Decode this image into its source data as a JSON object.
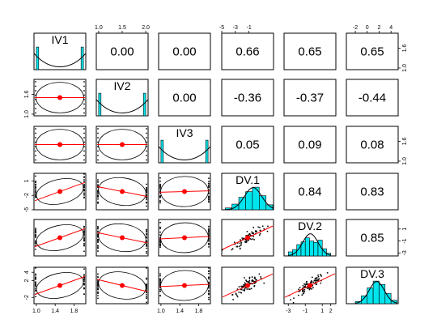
{
  "chart_data": {
    "type": "scatter-matrix",
    "variables": [
      "IV1",
      "IV2",
      "IV3",
      "DV.1",
      "DV.2",
      "DV.3"
    ],
    "colors": {
      "hist": "#00e5ee",
      "fit": "#ff0000",
      "point": "#000000",
      "mean": "#ff0000",
      "ellipse": "#000000"
    },
    "correlations": [
      {
        "row": 0,
        "col": 1,
        "label": "0.00"
      },
      {
        "row": 0,
        "col": 2,
        "label": "0.00"
      },
      {
        "row": 0,
        "col": 3,
        "label": "0.66"
      },
      {
        "row": 0,
        "col": 4,
        "label": "0.65"
      },
      {
        "row": 0,
        "col": 5,
        "label": "0.65"
      },
      {
        "row": 1,
        "col": 2,
        "label": "0.00"
      },
      {
        "row": 1,
        "col": 3,
        "label": "-0.36"
      },
      {
        "row": 1,
        "col": 4,
        "label": "-0.37"
      },
      {
        "row": 1,
        "col": 5,
        "label": "-0.44"
      },
      {
        "row": 2,
        "col": 3,
        "label": "0.05"
      },
      {
        "row": 2,
        "col": 4,
        "label": "0.09"
      },
      {
        "row": 2,
        "col": 5,
        "label": "0.08"
      },
      {
        "row": 3,
        "col": 4,
        "label": "0.84"
      },
      {
        "row": 3,
        "col": 5,
        "label": "0.83"
      },
      {
        "row": 4,
        "col": 5,
        "label": "0.85"
      }
    ],
    "ranges": [
      [
        0.95,
        2.05
      ],
      [
        0.95,
        2.05
      ],
      [
        0.95,
        2.05
      ],
      [
        -5,
        2.6
      ],
      [
        -3.5,
        2.6
      ],
      [
        -3.5,
        5.2
      ]
    ],
    "ticks": {
      "top": [
        {
          "col": 1,
          "values": [
            1.0,
            1.5,
            2.0
          ],
          "labels": [
            "1.0",
            "1.5",
            "2.0"
          ]
        },
        {
          "col": 3,
          "values": [
            -5,
            -3,
            -1
          ],
          "labels": [
            "-5",
            "-3",
            "-1"
          ]
        },
        {
          "col": 5,
          "values": [
            -2,
            0,
            2,
            4
          ],
          "labels": [
            "-2",
            "0",
            "2",
            "4"
          ]
        }
      ],
      "bottom": [
        {
          "col": 0,
          "values": [
            1.0,
            1.4,
            1.8
          ],
          "labels": [
            "1.0",
            "1.4",
            "1.8"
          ]
        },
        {
          "col": 2,
          "values": [
            1.0,
            1.4,
            1.8
          ],
          "labels": [
            "1.0",
            "1.4",
            "1.8"
          ]
        },
        {
          "col": 4,
          "values": [
            -3,
            -1,
            1,
            2
          ],
          "labels": [
            "-3",
            "-1",
            "1",
            "2"
          ]
        }
      ],
      "left": [
        {
          "row": 1,
          "values": [
            1.0,
            1.6
          ],
          "labels": [
            "1.0",
            "1.6"
          ]
        },
        {
          "row": 3,
          "values": [
            -5,
            -2,
            1
          ],
          "labels": [
            "-5",
            "-2",
            "1"
          ]
        },
        {
          "row": 5,
          "values": [
            -2,
            2,
            4
          ],
          "labels": [
            "-2",
            "2",
            "4"
          ]
        }
      ],
      "right": [
        {
          "row": 0,
          "values": [
            1.0,
            1.6
          ],
          "labels": [
            "1.0",
            "1.6"
          ]
        },
        {
          "row": 2,
          "values": [
            1.0,
            1.6
          ],
          "labels": [
            "1.0",
            "1.6"
          ]
        },
        {
          "row": 4,
          "values": [
            -3,
            -1,
            1
          ],
          "labels": [
            "-3",
            "-1",
            "1"
          ]
        }
      ]
    },
    "histograms": [
      {
        "var": 0,
        "edges": [
          1.0,
          1.05,
          1.95,
          2.0
        ],
        "heights": [
          1.0,
          0.0,
          1.0
        ]
      },
      {
        "var": 1,
        "edges": [
          1.0,
          1.05,
          1.95,
          2.0
        ],
        "heights": [
          1.0,
          0.0,
          1.0
        ]
      },
      {
        "var": 2,
        "edges": [
          1.0,
          1.05,
          1.95,
          2.0
        ],
        "heights": [
          1.0,
          0.0,
          1.0
        ]
      },
      {
        "var": 3,
        "edges": [
          -4.5,
          -3.5,
          -2.5,
          -1.5,
          -0.5,
          0.5,
          1.5,
          2.5
        ],
        "heights": [
          0.08,
          0.25,
          0.55,
          0.8,
          1.0,
          0.62,
          0.22
        ]
      },
      {
        "var": 4,
        "edges": [
          -3.0,
          -2.5,
          -2.0,
          -1.5,
          -1.0,
          -0.5,
          0.0,
          0.5,
          1.0,
          1.5,
          2.0
        ],
        "heights": [
          0.18,
          0.28,
          0.5,
          0.62,
          0.8,
          0.66,
          0.6,
          0.7,
          0.32,
          0.12
        ]
      },
      {
        "var": 5,
        "edges": [
          -2.0,
          -1.0,
          0.0,
          1.0,
          2.0,
          3.0,
          4.0,
          5.0
        ],
        "heights": [
          0.1,
          0.35,
          0.7,
          1.0,
          0.85,
          0.45,
          0.15
        ]
      }
    ]
  }
}
